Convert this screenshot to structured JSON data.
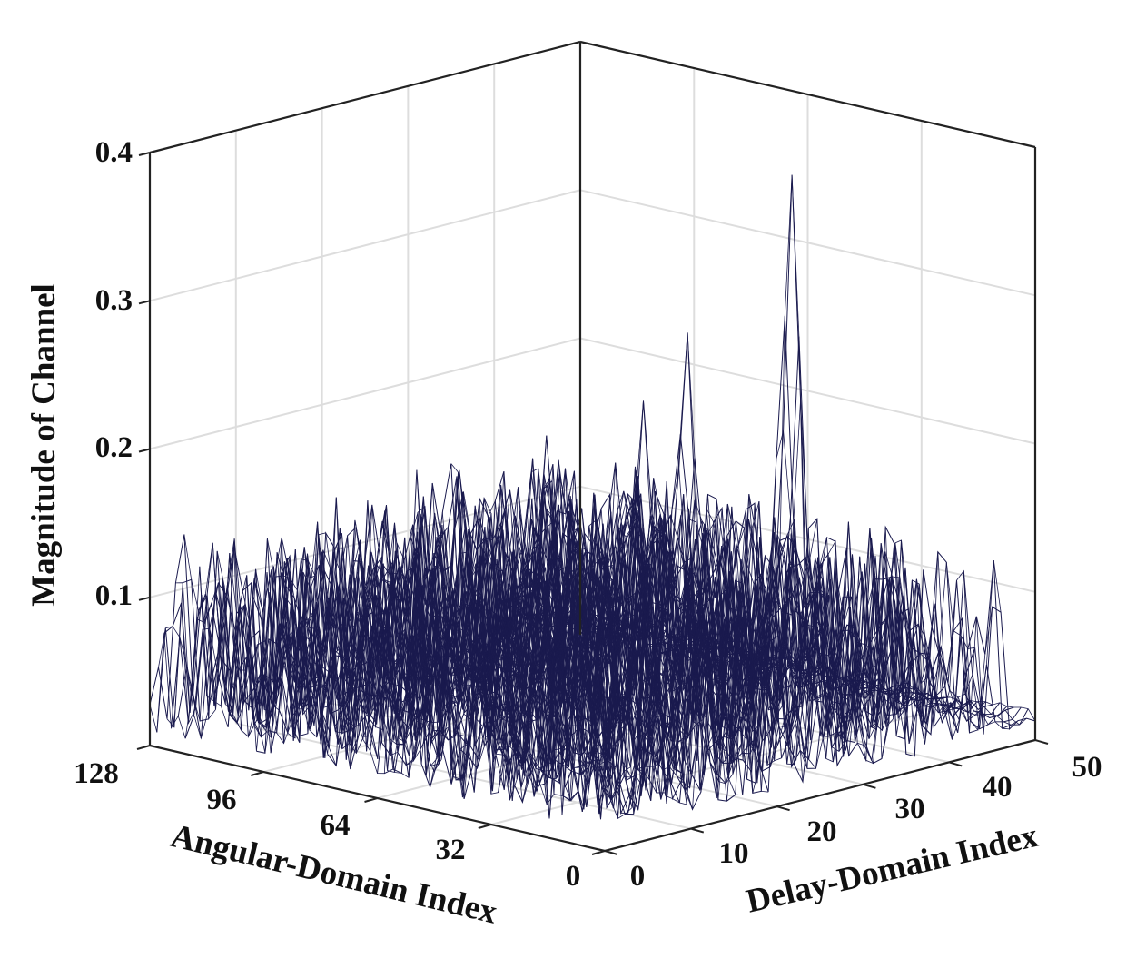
{
  "chart_data": {
    "type": "surface-mesh",
    "xlabel": "Delay-Domain Index",
    "ylabel": "Angular-Domain Index",
    "zlabel": "Magnitude of Channel",
    "xlim": [
      0,
      50
    ],
    "ylim": [
      0,
      128
    ],
    "zlim": [
      0,
      0.4
    ],
    "xticks": [
      "0",
      "10",
      "20",
      "30",
      "40",
      "50"
    ],
    "yticks": [
      "0",
      "32",
      "64",
      "96",
      "128"
    ],
    "zticks": [
      "0.1",
      "0.2",
      "0.3",
      "0.4"
    ],
    "grid": true,
    "box": "full",
    "view": "3d oblique",
    "noise_floor_range": [
      0.01,
      0.14
    ],
    "peaks": [
      {
        "delay": 30,
        "angle": 20,
        "magnitude": 0.4
      },
      {
        "delay": 22,
        "angle": 30,
        "magnitude": 0.3
      },
      {
        "delay": 21,
        "angle": 40,
        "magnitude": 0.25
      },
      {
        "delay": 18,
        "angle": 60,
        "magnitude": 0.22
      },
      {
        "delay": 12,
        "angle": 70,
        "magnitude": 0.2
      }
    ],
    "colors": {
      "mesh": "#1a1a4e",
      "grid": "#dddddd",
      "axis": "#222222",
      "text": "#111111"
    }
  }
}
